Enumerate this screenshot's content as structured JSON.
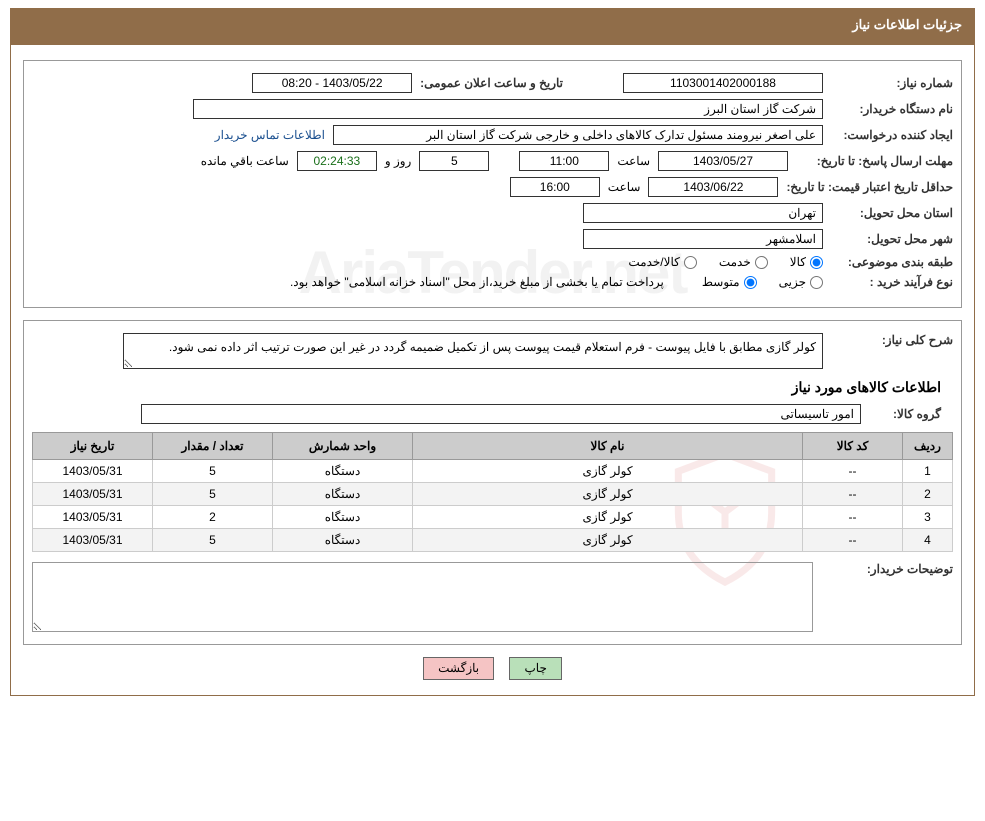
{
  "header": {
    "title": "جزئیات اطلاعات نیاز"
  },
  "form": {
    "need_number_label": "شماره نیاز:",
    "need_number": "1103001402000188",
    "announce_label": "تاریخ و ساعت اعلان عمومی:",
    "announce_value": "1403/05/22 - 08:20",
    "buyer_org_label": "نام دستگاه خریدار:",
    "buyer_org": "شرکت گاز استان البرز",
    "requester_label": "ایجاد کننده درخواست:",
    "requester": "علی اصغر نیرومند مسئول تدارک کالاهای داخلی و خارجی شرکت گاز استان البر",
    "contact_link": "اطلاعات تماس خریدار",
    "deadline_label": "مهلت ارسال پاسخ: تا تاریخ:",
    "deadline_date": "1403/05/27",
    "time_label": "ساعت",
    "deadline_time": "11:00",
    "days_value": "5",
    "days_label": "روز و",
    "countdown": "02:24:33",
    "remaining_label": "ساعت باقي مانده",
    "validity_label": "حداقل تاریخ اعتبار قیمت: تا تاریخ:",
    "validity_date": "1403/06/22",
    "validity_time": "16:00",
    "province_label": "استان محل تحویل:",
    "province": "تهران",
    "city_label": "شهر محل تحویل:",
    "city": "اسلامشهر",
    "category_label": "طبقه بندی موضوعی:",
    "cat_goods": "کالا",
    "cat_service": "خدمت",
    "cat_both": "کالا/خدمت",
    "process_label": "نوع فرآیند خرید :",
    "proc_partial": "جزیی",
    "proc_medium": "متوسط",
    "payment_note": "پرداخت تمام یا بخشی از مبلغ خرید،از محل \"اسناد خزانه اسلامی\" خواهد بود."
  },
  "detail": {
    "overview_label": "شرح کلی نیاز:",
    "overview_text": "کولر گازی مطابق با فایل پیوست - فرم استعلام قیمت پیوست پس از تکمیل ضمیمه گردد در غیر این صورت ترتیب اثر داده نمی شود.",
    "goods_title": "اطلاعات کالاهای مورد نیاز",
    "group_label": "گروه کالا:",
    "group_value": "امور تاسیساتی",
    "buyer_desc_label": "توضیحات خریدار:"
  },
  "table": {
    "headers": {
      "row": "ردیف",
      "code": "کد کالا",
      "name": "نام کالا",
      "unit": "واحد شمارش",
      "qty": "تعداد / مقدار",
      "date": "تاریخ نیاز"
    },
    "rows": [
      {
        "idx": "1",
        "code": "--",
        "name": "کولر گازی",
        "unit": "دستگاه",
        "qty": "5",
        "date": "1403/05/31"
      },
      {
        "idx": "2",
        "code": "--",
        "name": "کولر گازی",
        "unit": "دستگاه",
        "qty": "5",
        "date": "1403/05/31"
      },
      {
        "idx": "3",
        "code": "--",
        "name": "کولر گازی",
        "unit": "دستگاه",
        "qty": "2",
        "date": "1403/05/31"
      },
      {
        "idx": "4",
        "code": "--",
        "name": "کولر گازی",
        "unit": "دستگاه",
        "qty": "5",
        "date": "1403/05/31"
      }
    ]
  },
  "buttons": {
    "print": "چاپ",
    "back": "بازگشت"
  },
  "colors": {
    "header_bg": "#906d49",
    "header_text": "#ffffff",
    "border": "#999999",
    "table_header_bg": "#cccccc",
    "link": "#1a4f8f",
    "btn_print_bg": "#b9e0b9",
    "btn_back_bg": "#f5c4c4"
  },
  "watermark": {
    "text": "AriaTender.net"
  }
}
